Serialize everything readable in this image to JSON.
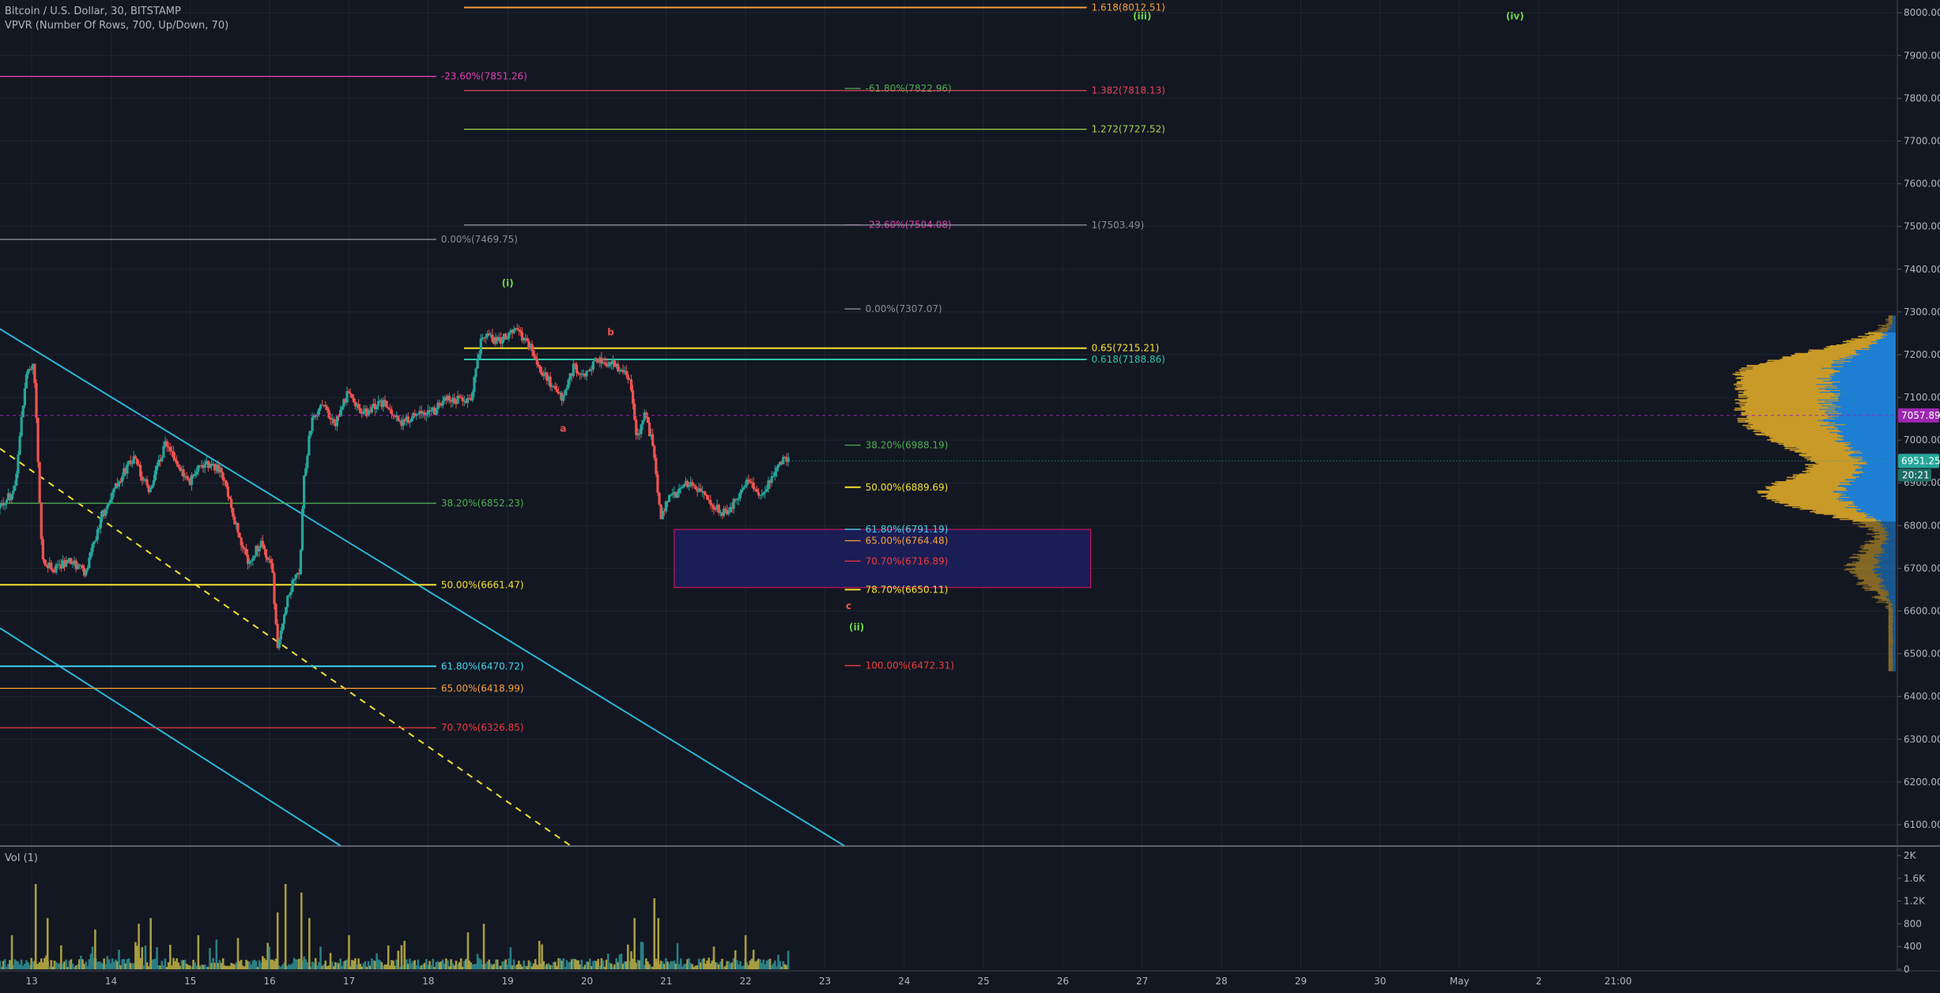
{
  "header": {
    "symbol_line": "Bitcoin / U.S. Dollar, 30, BITSTAMP",
    "indicator_line": "VPVR (Number Of Rows, 700, Up/Down, 70)",
    "volume_label": "Vol (1)"
  },
  "colors": {
    "background": "#131722",
    "grid": "#1f2433",
    "axis_text": "#b2b5be",
    "up": "#26a69a",
    "down": "#ef5350",
    "vp_up": "#1e7fd3",
    "vp_down": "#c99a28",
    "vol_up": "#2a7f84",
    "vol_down": "#a79d40"
  },
  "chart_data": {
    "type": "candlestick",
    "price_axis": {
      "ylim": [
        6050,
        8030
      ],
      "ticks": [
        "6100.00",
        "6200.00",
        "6300.00",
        "6400.00",
        "6500.00",
        "6600.00",
        "6700.00",
        "6800.00",
        "6900.00",
        "7000.00",
        "7100.00",
        "7200.00",
        "7300.00",
        "7400.00",
        "7500.00",
        "7600.00",
        "7700.00",
        "7800.00",
        "7900.00",
        "8000.00"
      ]
    },
    "time_axis": {
      "start_day": 12.6,
      "end_day": 36.5,
      "ticks": [
        {
          "day": 13,
          "label": "13"
        },
        {
          "day": 14,
          "label": "14"
        },
        {
          "day": 15,
          "label": "15"
        },
        {
          "day": 16,
          "label": "16"
        },
        {
          "day": 17,
          "label": "17"
        },
        {
          "day": 18,
          "label": "18"
        },
        {
          "day": 19,
          "label": "19"
        },
        {
          "day": 20,
          "label": "20"
        },
        {
          "day": 21,
          "label": "21"
        },
        {
          "day": 22,
          "label": "22"
        },
        {
          "day": 23,
          "label": "23"
        },
        {
          "day": 24,
          "label": "24"
        },
        {
          "day": 25,
          "label": "25"
        },
        {
          "day": 26,
          "label": "26"
        },
        {
          "day": 27,
          "label": "27"
        },
        {
          "day": 28,
          "label": "28"
        },
        {
          "day": 29,
          "label": "29"
        },
        {
          "day": 30,
          "label": "30"
        },
        {
          "day": 31,
          "label": "May"
        },
        {
          "day": 32,
          "label": "2"
        },
        {
          "day": 33,
          "label": "21:00"
        }
      ]
    },
    "price_path": [
      [
        12.6,
        6840
      ],
      [
        12.8,
        6880
      ],
      [
        12.95,
        7150
      ],
      [
        13.05,
        7180
      ],
      [
        13.1,
        6950
      ],
      [
        13.15,
        6720
      ],
      [
        13.3,
        6700
      ],
      [
        13.5,
        6720
      ],
      [
        13.7,
        6690
      ],
      [
        13.9,
        6820
      ],
      [
        14.1,
        6900
      ],
      [
        14.3,
        6960
      ],
      [
        14.5,
        6880
      ],
      [
        14.7,
        6990
      ],
      [
        14.85,
        6950
      ],
      [
        15.0,
        6900
      ],
      [
        15.2,
        6950
      ],
      [
        15.4,
        6930
      ],
      [
        15.6,
        6800
      ],
      [
        15.75,
        6710
      ],
      [
        15.9,
        6760
      ],
      [
        16.05,
        6700
      ],
      [
        16.12,
        6520
      ],
      [
        16.25,
        6640
      ],
      [
        16.4,
        6700
      ],
      [
        16.45,
        6900
      ],
      [
        16.55,
        7050
      ],
      [
        16.7,
        7080
      ],
      [
        16.85,
        7040
      ],
      [
        17.0,
        7110
      ],
      [
        17.2,
        7060
      ],
      [
        17.45,
        7090
      ],
      [
        17.7,
        7040
      ],
      [
        17.9,
        7070
      ],
      [
        18.05,
        7060
      ],
      [
        18.25,
        7100
      ],
      [
        18.55,
        7090
      ],
      [
        18.7,
        7250
      ],
      [
        18.9,
        7230
      ],
      [
        19.1,
        7260
      ],
      [
        19.3,
        7220
      ],
      [
        19.45,
        7160
      ],
      [
        19.7,
        7100
      ],
      [
        19.85,
        7170
      ],
      [
        20.0,
        7150
      ],
      [
        20.15,
        7190
      ],
      [
        20.35,
        7180
      ],
      [
        20.55,
        7150
      ],
      [
        20.65,
        7000
      ],
      [
        20.75,
        7060
      ],
      [
        20.85,
        6990
      ],
      [
        20.95,
        6820
      ],
      [
        21.05,
        6860
      ],
      [
        21.3,
        6900
      ],
      [
        21.55,
        6860
      ],
      [
        21.75,
        6830
      ],
      [
        21.9,
        6860
      ],
      [
        22.05,
        6910
      ],
      [
        22.2,
        6870
      ],
      [
        22.35,
        6910
      ],
      [
        22.45,
        6950
      ],
      [
        22.55,
        6960
      ]
    ],
    "current_price": {
      "value": 6951.25,
      "label": "6951.25",
      "countdown": "20:21"
    },
    "poc_price": {
      "value": 7057.89,
      "label": "7057.89"
    },
    "wave_labels": [
      {
        "text": "(i)",
        "day": 19.0,
        "price": 7360,
        "color": "#6ed648"
      },
      {
        "text": "(ii)",
        "day": 23.4,
        "price": 6555,
        "color": "#6ed648"
      },
      {
        "text": "(iii)",
        "day": 27.0,
        "price": 7985,
        "color": "#6ed648"
      },
      {
        "text": "(iv)",
        "day": 31.7,
        "price": 7985,
        "color": "#6ed648"
      },
      {
        "text": "a",
        "day": 19.7,
        "price": 7020,
        "color": "#ef5350"
      },
      {
        "text": "b",
        "day": 20.3,
        "price": 7245,
        "color": "#ef5350"
      },
      {
        "text": "c",
        "day": 23.3,
        "price": 6605,
        "color": "#ef5350"
      }
    ],
    "fib_levels": [
      {
        "price": 8012.51,
        "d0": 18.45,
        "d1": 26.3,
        "label": "1.618(8012.51)",
        "color": "#f7a03a"
      },
      {
        "price": 7851.26,
        "d0": 12.6,
        "d1": 18.1,
        "label": "-23.60%(7851.26)",
        "color": "#e040b0"
      },
      {
        "price": 7822.96,
        "d0": 23.25,
        "d1": 23.45,
        "label": "-61.80%(7822.96)",
        "color": "#4caf50"
      },
      {
        "price": 7818.13,
        "d0": 18.45,
        "d1": 26.3,
        "label": "1.382(7818.13)",
        "color": "#e0435a"
      },
      {
        "price": 7727.52,
        "d0": 18.45,
        "d1": 26.3,
        "label": "1.272(7727.52)",
        "color": "#a9d152"
      },
      {
        "price": 7504.08,
        "d0": 23.25,
        "d1": 23.45,
        "label": "-23.60%(7504.08)",
        "color": "#e040b0"
      },
      {
        "price": 7503.49,
        "d0": 18.45,
        "d1": 26.3,
        "label": "1(7503.49)",
        "color": "#8a8e99"
      },
      {
        "price": 7469.75,
        "d0": 12.6,
        "d1": 18.1,
        "label": "0.00%(7469.75)",
        "color": "#8a8e99"
      },
      {
        "price": 7307.07,
        "d0": 23.25,
        "d1": 23.45,
        "label": "0.00%(7307.07)",
        "color": "#8a8e99"
      },
      {
        "price": 7215.21,
        "d0": 18.45,
        "d1": 26.3,
        "label": "0.65(7215.21)",
        "color": "#f5e12f"
      },
      {
        "price": 7188.86,
        "d0": 18.45,
        "d1": 26.3,
        "label": "0.618(7188.86)",
        "color": "#2ec4a9"
      },
      {
        "price": 6988.19,
        "d0": 23.25,
        "d1": 23.45,
        "label": "38.20%(6988.19)",
        "color": "#4caf50"
      },
      {
        "price": 6889.69,
        "d0": 23.25,
        "d1": 23.45,
        "label": "50.00%(6889.69)",
        "color": "#f5e12f"
      },
      {
        "price": 6852.23,
        "d0": 12.6,
        "d1": 18.1,
        "label": "38.20%(6852.23)",
        "color": "#4caf50"
      },
      {
        "price": 6791.19,
        "d0": 23.25,
        "d1": 23.45,
        "label": "61.80%(6791.19)",
        "color": "#3fd6f0"
      },
      {
        "price": 6764.48,
        "d0": 23.25,
        "d1": 23.45,
        "label": "65.00%(6764.48)",
        "color": "#f7a03a"
      },
      {
        "price": 6716.89,
        "d0": 23.25,
        "d1": 23.45,
        "label": "70.70%(6716.89)",
        "color": "#ef3a3a"
      },
      {
        "price": 6661.47,
        "d0": 12.6,
        "d1": 18.1,
        "label": "50.00%(6661.47)",
        "color": "#f5e12f"
      },
      {
        "price": 6650.11,
        "d0": 23.25,
        "d1": 23.45,
        "label": "78.70%(6650.11)",
        "color": "#f5e12f"
      },
      {
        "price": 6472.31,
        "d0": 23.25,
        "d1": 23.45,
        "label": "100.00%(6472.31)",
        "color": "#ef3a3a"
      },
      {
        "price": 6470.72,
        "d0": 12.6,
        "d1": 18.1,
        "label": "61.80%(6470.72)",
        "color": "#3fd6f0"
      },
      {
        "price": 6418.99,
        "d0": 12.6,
        "d1": 18.1,
        "label": "65.00%(6418.99)",
        "color": "#f7a03a"
      },
      {
        "price": 6326.85,
        "d0": 12.6,
        "d1": 18.1,
        "label": "70.70%(6326.85)",
        "color": "#ef3a3a"
      }
    ],
    "zone_box": {
      "d0": 21.1,
      "d1": 26.35,
      "p_top": 6791,
      "p_bot": 6655,
      "fill": "#1d1e5e",
      "stroke": "#c2185b"
    },
    "trend_lines": [
      {
        "d0": 12.6,
        "p0": 7260,
        "d1": 23.25,
        "p1": 6050,
        "color": "#2ab7d6",
        "dashed": false
      },
      {
        "d0": 12.6,
        "p0": 6560,
        "d1": 16.9,
        "p1": 6050,
        "color": "#2ab7d6",
        "dashed": false
      },
      {
        "d0": 12.6,
        "p0": 6980,
        "d1": 19.8,
        "p1": 6050,
        "color": "#f5e12f",
        "dashed": true
      }
    ],
    "volume_axis": {
      "ylim": [
        0,
        2000
      ],
      "ticks": [
        {
          "v": 0,
          "label": "0"
        },
        {
          "v": 400,
          "label": "400"
        },
        {
          "v": 800,
          "label": "800"
        },
        {
          "v": 1200,
          "label": "1.2K"
        },
        {
          "v": 1600,
          "label": "1.6K"
        },
        {
          "v": 2000,
          "label": "2K"
        }
      ]
    },
    "volume_spikes": [
      [
        12.75,
        600
      ],
      [
        13.05,
        1500
      ],
      [
        13.2,
        900
      ],
      [
        13.8,
        700
      ],
      [
        14.35,
        800
      ],
      [
        14.5,
        900
      ],
      [
        15.1,
        600
      ],
      [
        15.6,
        550
      ],
      [
        16.1,
        1000
      ],
      [
        16.2,
        1500
      ],
      [
        16.4,
        1350
      ],
      [
        16.5,
        900
      ],
      [
        17.0,
        600
      ],
      [
        17.7,
        500
      ],
      [
        18.5,
        650
      ],
      [
        18.7,
        800
      ],
      [
        19.4,
        500
      ],
      [
        20.6,
        900
      ],
      [
        20.85,
        1250
      ],
      [
        20.9,
        900
      ],
      [
        21.6,
        400
      ],
      [
        22.0,
        600
      ]
    ],
    "volume_profile": {
      "p_min": 6460,
      "p_max": 7290,
      "peak_price": 7057.89,
      "max_width_frac": 1.0
    }
  }
}
